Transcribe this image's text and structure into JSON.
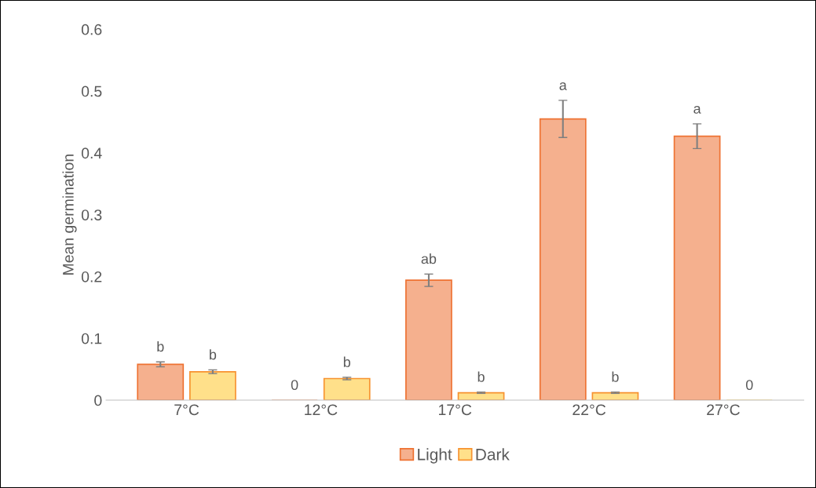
{
  "chart_data": {
    "type": "bar",
    "ylabel": "Mean germination",
    "categories": [
      "7°C",
      "12°C",
      "17°C",
      "22°C",
      "27°C"
    ],
    "series": [
      {
        "name": "Light",
        "color": "#f5b08e",
        "values": [
          0.058,
          0,
          0.194,
          0.455,
          0.427
        ],
        "errors": [
          0.004,
          null,
          0.01,
          0.03,
          0.02
        ],
        "value_labels": [
          "b",
          "0",
          "ab",
          "a",
          "a"
        ]
      },
      {
        "name": "Dark",
        "color": "#ffe08a",
        "values": [
          0.046,
          0.035,
          0.012,
          0.012,
          0
        ],
        "errors": [
          0.003,
          0.002,
          0.001,
          0.001,
          null
        ],
        "value_labels": [
          "b",
          "b",
          "b",
          "b",
          "0"
        ]
      }
    ],
    "ylim": [
      0,
      0.6
    ],
    "yticks": [
      {
        "value": 0,
        "label": "0"
      },
      0.1,
      0.2,
      0.3,
      0.4,
      0.5,
      0.6
    ],
    "grid": false,
    "legend": "bottom"
  }
}
